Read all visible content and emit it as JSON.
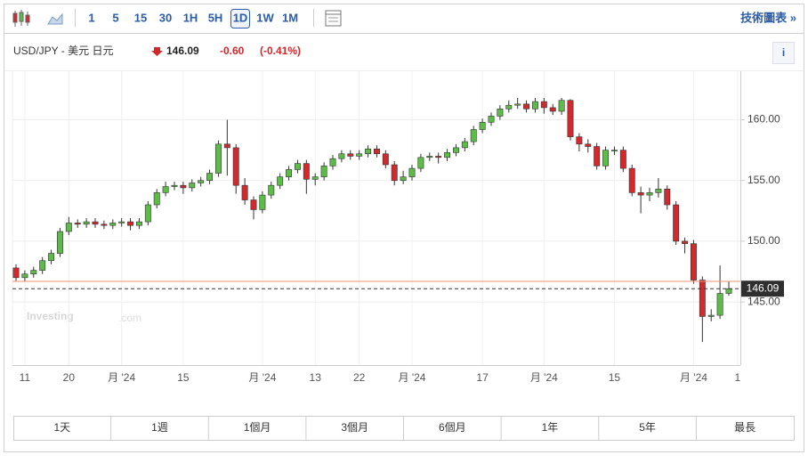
{
  "toolbar": {
    "intervals": [
      "1",
      "5",
      "15",
      "30",
      "1H",
      "5H",
      "1D",
      "1W",
      "1M"
    ],
    "active": "1D",
    "technical_link": "技術圖表 »"
  },
  "header": {
    "symbol": "USD/JPY - 美元 日元",
    "price": "146.09",
    "change": "-0.60",
    "change_percent": "(-0.41%)",
    "info": "i"
  },
  "chart_data": {
    "type": "candlestick",
    "watermark": "Investing",
    "watermark_suffix": ".com",
    "categories": [
      null,
      "11",
      null,
      null,
      null,
      null,
      "20",
      null,
      null,
      null,
      null,
      null,
      "月 '24",
      null,
      null,
      null,
      null,
      null,
      null,
      "15",
      null,
      null,
      null,
      null,
      null,
      null,
      null,
      null,
      "月 '24",
      null,
      null,
      null,
      null,
      null,
      "13",
      null,
      null,
      null,
      null,
      "22",
      null,
      null,
      null,
      null,
      null,
      "月 '24",
      null,
      null,
      null,
      null,
      null,
      null,
      null,
      "17",
      null,
      null,
      null,
      null,
      null,
      null,
      "月 '24",
      null,
      null,
      null,
      null,
      null,
      null,
      null,
      "15",
      null,
      null,
      null,
      null,
      null,
      null,
      null,
      null,
      "月 '24",
      null,
      null,
      null,
      null,
      "1"
    ],
    "series": [
      {
        "open": [
          147.8,
          147.0,
          147.3,
          147.6,
          148.4,
          149.0,
          150.8,
          151.5,
          151.4,
          151.6,
          151.4,
          151.3,
          151.5,
          151.6,
          151.3,
          151.6,
          153.0,
          154.0,
          154.5,
          154.6,
          154.4,
          154.8,
          155.0,
          155.6,
          158.0,
          157.7,
          154.6,
          153.4,
          152.6,
          153.8,
          154.6,
          155.3,
          155.9,
          156.4,
          155.1,
          155.3,
          156.2,
          156.8,
          157.2,
          157.0,
          157.2,
          157.6,
          157.2,
          156.3,
          155.0,
          155.3,
          156.0,
          156.9,
          157.0,
          156.9,
          157.3,
          157.7,
          158.2,
          159.2,
          159.8,
          160.3,
          160.9,
          161.2,
          161.3,
          160.9,
          161.5,
          161.0,
          160.7,
          161.6,
          158.6,
          158.0,
          157.8,
          156.2,
          157.5,
          157.5,
          156.0,
          154.0,
          153.8,
          154.0,
          154.3,
          153.0,
          150.0,
          149.8,
          146.8,
          143.8,
          143.9,
          145.7,
          null
        ],
        "high": [
          148.1,
          147.6,
          147.9,
          148.7,
          149.3,
          151.1,
          152.0,
          151.8,
          151.9,
          151.9,
          151.7,
          151.8,
          151.9,
          151.9,
          151.9,
          153.3,
          154.3,
          154.9,
          154.9,
          154.9,
          155.1,
          155.3,
          155.9,
          158.3,
          160.0,
          158.0,
          155.2,
          153.7,
          154.1,
          154.9,
          155.6,
          156.2,
          156.7,
          156.7,
          155.6,
          156.5,
          157.1,
          157.5,
          157.5,
          157.5,
          157.9,
          157.9,
          157.5,
          156.6,
          155.8,
          156.3,
          157.2,
          157.3,
          157.3,
          157.6,
          158.0,
          158.5,
          159.5,
          160.1,
          160.6,
          161.2,
          161.6,
          161.8,
          161.6,
          161.8,
          161.8,
          161.3,
          161.8,
          161.7,
          158.9,
          158.4,
          158.1,
          157.8,
          157.8,
          157.8,
          156.3,
          154.5,
          154.4,
          155.2,
          154.6,
          153.3,
          150.3,
          150.1,
          147.1,
          144.4,
          148.0,
          146.7,
          null
        ],
        "low": [
          146.7,
          146.7,
          147.0,
          147.3,
          148.1,
          148.7,
          150.5,
          151.1,
          151.1,
          151.1,
          151.0,
          151.0,
          151.2,
          150.9,
          151.0,
          151.3,
          152.7,
          153.7,
          154.2,
          153.9,
          154.1,
          154.5,
          154.7,
          155.3,
          155.4,
          153.9,
          153.0,
          151.8,
          152.3,
          153.5,
          154.3,
          155.0,
          155.6,
          153.9,
          154.6,
          155.0,
          155.9,
          156.5,
          156.7,
          156.7,
          156.9,
          156.9,
          156.0,
          154.6,
          154.7,
          155.0,
          155.7,
          156.6,
          156.4,
          156.6,
          157.0,
          157.4,
          157.9,
          158.9,
          159.5,
          160.0,
          160.6,
          160.9,
          160.6,
          160.6,
          160.5,
          160.4,
          160.4,
          158.3,
          157.4,
          157.3,
          155.9,
          155.9,
          157.1,
          155.7,
          153.7,
          152.3,
          153.3,
          153.6,
          152.6,
          149.7,
          149.0,
          146.5,
          141.7,
          143.4,
          143.6,
          145.5,
          null
        ],
        "close": [
          147.0,
          147.3,
          147.6,
          148.4,
          149.0,
          150.8,
          151.5,
          151.4,
          151.6,
          151.4,
          151.3,
          151.5,
          151.6,
          151.3,
          151.6,
          153.0,
          154.0,
          154.5,
          154.6,
          154.4,
          154.8,
          155.0,
          155.6,
          158.0,
          157.7,
          154.6,
          153.4,
          152.6,
          153.8,
          154.6,
          155.3,
          155.9,
          156.4,
          155.1,
          155.3,
          156.2,
          156.8,
          157.2,
          157.0,
          157.2,
          157.6,
          157.2,
          156.3,
          155.0,
          155.3,
          156.0,
          156.9,
          157.0,
          156.9,
          157.3,
          157.7,
          158.2,
          159.2,
          159.8,
          160.3,
          160.9,
          161.2,
          161.3,
          160.9,
          161.5,
          161.0,
          160.7,
          161.6,
          158.6,
          158.0,
          157.8,
          156.2,
          157.5,
          157.5,
          156.0,
          154.0,
          153.8,
          154.0,
          154.3,
          153.0,
          150.0,
          149.8,
          146.8,
          143.8,
          143.9,
          145.7,
          146.09,
          null
        ],
        "up_color": "#5cbc47",
        "down_color": "#d3282c"
      }
    ],
    "ylim": [
      139.8,
      164.0
    ],
    "yticks": [
      {
        "value": 145,
        "label": "145.00"
      },
      {
        "value": 150,
        "label": "150.00"
      },
      {
        "value": 155,
        "label": "155.00"
      },
      {
        "value": 160,
        "label": "160.00"
      }
    ],
    "last_price": 146.09,
    "prev_close": 146.69,
    "grid": true
  },
  "ranges": [
    "1天",
    "1週",
    "1個月",
    "3個月",
    "6個月",
    "1年",
    "5年",
    "最長"
  ]
}
